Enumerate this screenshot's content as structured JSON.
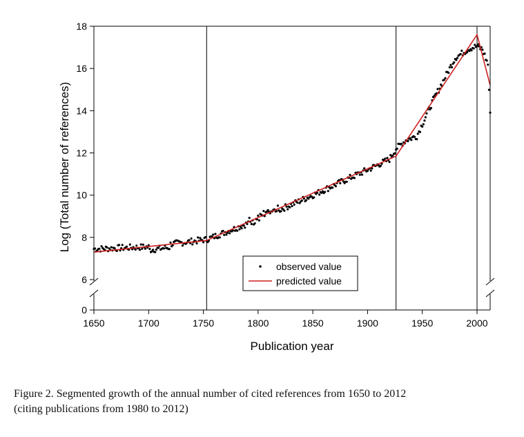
{
  "chart_data": {
    "type": "scatter",
    "title": "",
    "xlabel": "Publication year",
    "ylabel": "Log (Total number of references)",
    "xlim": [
      1650,
      2012
    ],
    "ylim_upper": [
      6,
      18
    ],
    "ylim_lower": [
      0,
      0.5
    ],
    "axis_break": "y between 0 and 6",
    "x_ticks": [
      1650,
      1700,
      1750,
      1800,
      1850,
      1900,
      1950,
      2000
    ],
    "y_ticks": [
      0,
      6,
      8,
      10,
      12,
      14,
      16,
      18
    ],
    "grid": false,
    "legend": {
      "position": "bottom-center",
      "entries": [
        "observed value",
        "predicted value"
      ]
    },
    "breakpoints": [
      1753,
      1926,
      2000,
      2012
    ],
    "series": [
      {
        "name": "observed value",
        "style": "dots",
        "color": "#000000",
        "trend_anchors": [
          [
            1650,
            7.45
          ],
          [
            1700,
            7.55
          ],
          [
            1753,
            7.9
          ],
          [
            1800,
            8.85
          ],
          [
            1850,
            10.0
          ],
          [
            1900,
            11.2
          ],
          [
            1920,
            11.7
          ],
          [
            1926,
            12.2
          ],
          [
            1935,
            12.6
          ],
          [
            1945,
            12.8
          ],
          [
            1960,
            14.5
          ],
          [
            1980,
            16.5
          ],
          [
            1993,
            16.95
          ],
          [
            2000,
            17.05
          ],
          [
            2005,
            16.9
          ],
          [
            2010,
            16.2
          ],
          [
            2012,
            13.8
          ]
        ],
        "noise": 0.15
      },
      {
        "name": "predicted value",
        "style": "line",
        "color": "#cc1f1f",
        "x": [
          1650,
          1753,
          1926,
          2000,
          2012
        ],
        "y": [
          7.3,
          7.85,
          11.85,
          17.6,
          15.2
        ]
      }
    ]
  },
  "caption": {
    "line1": "Figure 2. Segmented growth of the annual number of cited references from 1650 to 2012",
    "line2": "(citing publications from 1980 to 2012)"
  }
}
